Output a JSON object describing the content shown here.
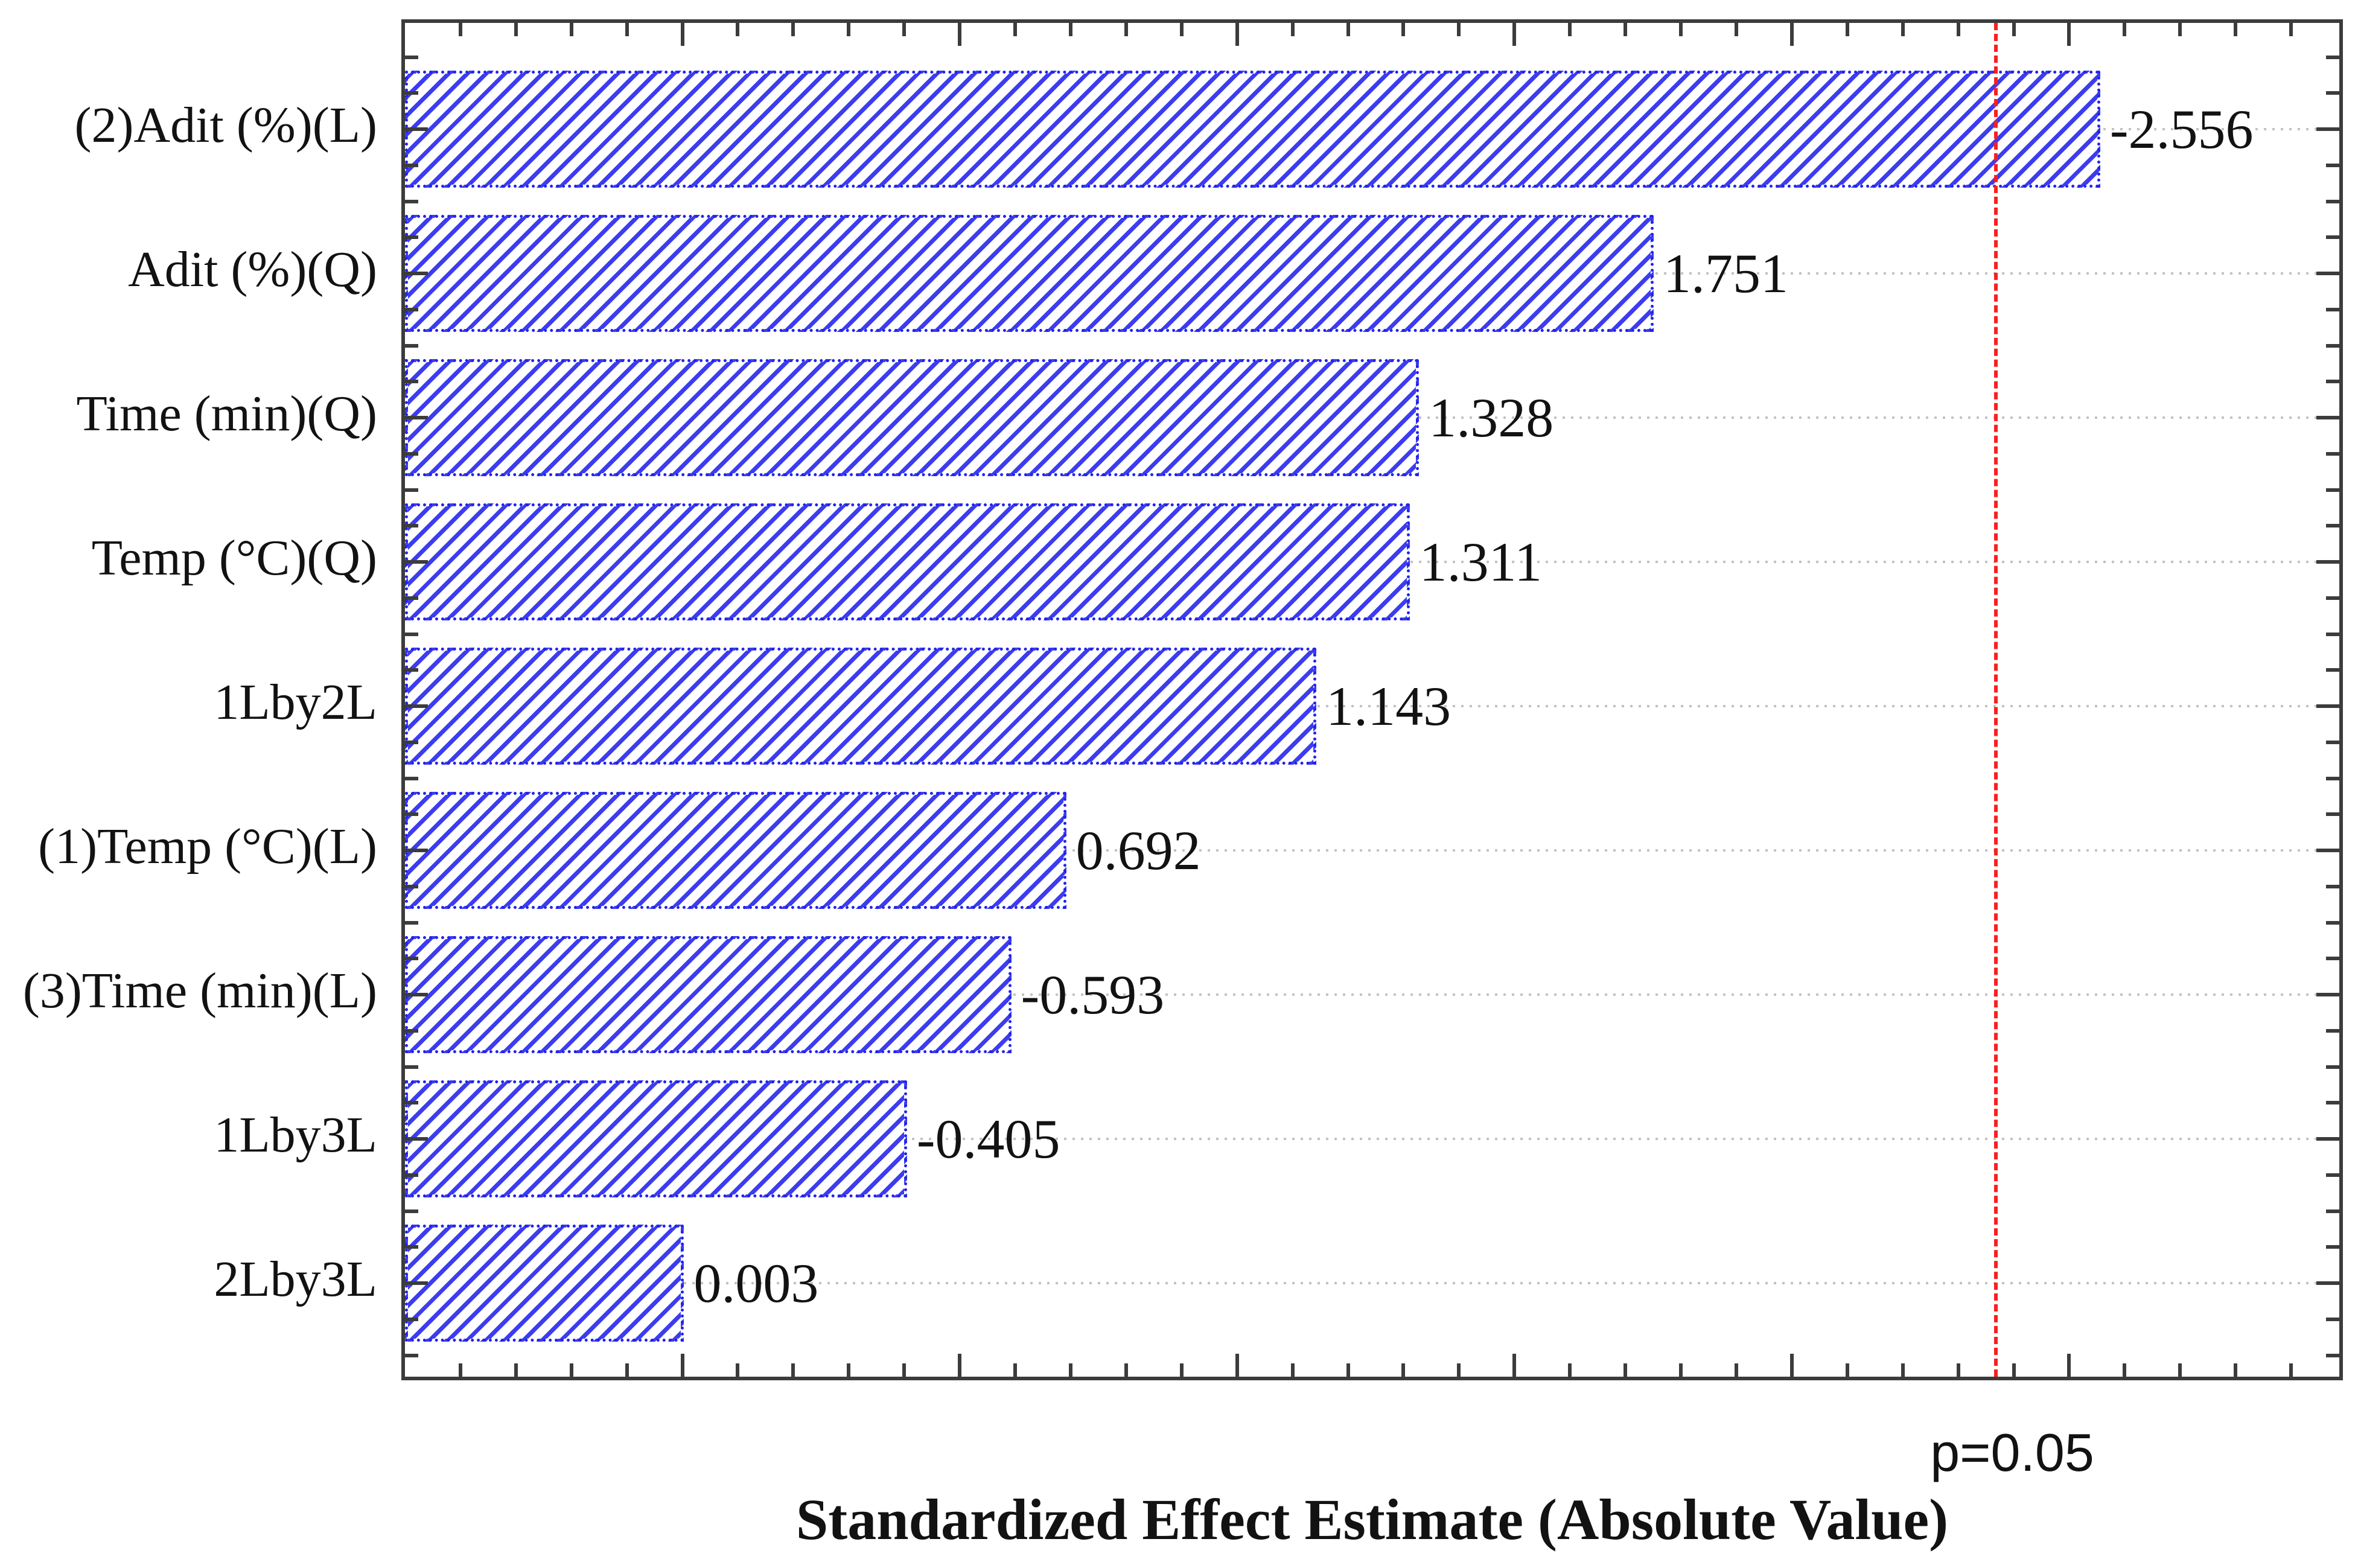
{
  "chart_data": {
    "type": "bar",
    "orientation": "horizontal",
    "title": "",
    "xlabel": "Standardized Effect Estimate (Absolute Value)",
    "ylabel": "",
    "categories": [
      "(2)Adit (%)(L)",
      "Adit (%)(Q)",
      "Time (min)(Q)",
      "Temp (°C)(Q)",
      "1Lby2L",
      "(1)Temp (°C)(L)",
      "(3)Time (min)(L)",
      "1Lby3L",
      "2Lby3L"
    ],
    "values": [
      -2.556,
      1.751,
      1.328,
      1.311,
      1.143,
      0.692,
      -0.593,
      -0.405,
      0.003
    ],
    "value_labels": [
      "-2.556",
      "1.751",
      "1.328",
      "1.311",
      "1.143",
      "0.692",
      "-0.593",
      "-0.405",
      "0.003"
    ],
    "bars_plotted_as": "absolute value, anchored at axis minimum",
    "xlim": [
      -0.5,
      3.0
    ],
    "x_minor_tick": 0.1,
    "x_major_tick": 0.5,
    "x_tick_labels_shown": false,
    "grid": "horizontal dotted gridline at each category center",
    "legend": "none",
    "threshold": {
      "value": 2.365,
      "label": "p=0.05"
    },
    "colors": {
      "bar_hatch": "#3c3cf0",
      "bar_border": "#2222ee",
      "bar_fill": "#ffffff",
      "axis": "#3c3c3c",
      "gridline": "#c3c3c3",
      "threshold_line": "#fa1f1f",
      "text": "#121212",
      "background": "#ffffff"
    }
  }
}
